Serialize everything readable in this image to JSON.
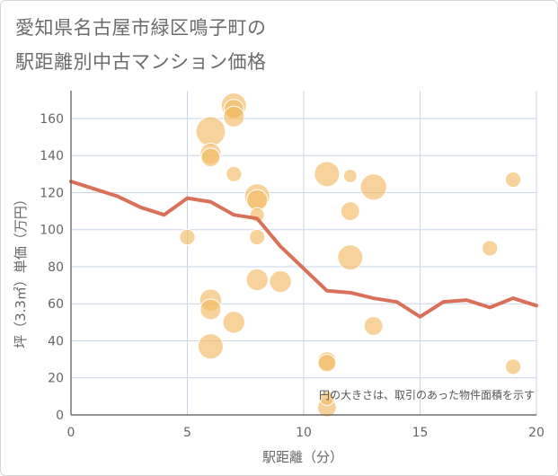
{
  "title_line1": "愛知県名古屋市緑区鳴子町の",
  "title_line2": "駅距離別中古マンション価格",
  "chart_data": {
    "type": "scatter",
    "xlabel": "駅距離（分）",
    "ylabel": "坪（3.3㎡）単価（万円）",
    "xlim": [
      0,
      20
    ],
    "ylim": [
      0,
      175
    ],
    "xticks": [
      0,
      5,
      10,
      15,
      20
    ],
    "yticks": [
      0,
      20,
      40,
      60,
      80,
      100,
      120,
      140,
      160
    ],
    "grid": true,
    "note": "円の大きさは、取引のあった物件面積を示す",
    "colors": {
      "bubble": "#f2bc66",
      "line": "#d9705a",
      "grid": "#c9d6e6"
    },
    "bubbles": [
      {
        "x": 5,
        "y": 96,
        "s": 0.3
      },
      {
        "x": 6,
        "y": 153,
        "s": 0.95
      },
      {
        "x": 6,
        "y": 141,
        "s": 0.55
      },
      {
        "x": 6,
        "y": 139,
        "s": 0.45
      },
      {
        "x": 6,
        "y": 62,
        "s": 0.6
      },
      {
        "x": 6,
        "y": 57,
        "s": 0.55
      },
      {
        "x": 6,
        "y": 37,
        "s": 0.75
      },
      {
        "x": 7,
        "y": 167,
        "s": 0.75
      },
      {
        "x": 7,
        "y": 165,
        "s": 0.5
      },
      {
        "x": 7,
        "y": 161,
        "s": 0.55
      },
      {
        "x": 7,
        "y": 130,
        "s": 0.3
      },
      {
        "x": 7,
        "y": 50,
        "s": 0.6
      },
      {
        "x": 8,
        "y": 118,
        "s": 0.75
      },
      {
        "x": 8,
        "y": 116,
        "s": 0.55
      },
      {
        "x": 8,
        "y": 108,
        "s": 0.25
      },
      {
        "x": 8,
        "y": 96,
        "s": 0.3
      },
      {
        "x": 8,
        "y": 73,
        "s": 0.6
      },
      {
        "x": 9,
        "y": 72,
        "s": 0.6
      },
      {
        "x": 11,
        "y": 130,
        "s": 0.75
      },
      {
        "x": 11,
        "y": 29,
        "s": 0.45
      },
      {
        "x": 11,
        "y": 28,
        "s": 0.4
      },
      {
        "x": 11,
        "y": 4,
        "s": 0.45
      },
      {
        "x": 11,
        "y": 9,
        "s": 0.25
      },
      {
        "x": 12,
        "y": 129,
        "s": 0.2
      },
      {
        "x": 12,
        "y": 110,
        "s": 0.45
      },
      {
        "x": 12,
        "y": 85,
        "s": 0.75
      },
      {
        "x": 13,
        "y": 123,
        "s": 0.8
      },
      {
        "x": 13,
        "y": 48,
        "s": 0.45
      },
      {
        "x": 18,
        "y": 90,
        "s": 0.3
      },
      {
        "x": 19,
        "y": 127,
        "s": 0.3
      },
      {
        "x": 19,
        "y": 26,
        "s": 0.3
      }
    ],
    "line": {
      "x": [
        0,
        1,
        2,
        3,
        4,
        5,
        6,
        7,
        8,
        9,
        10,
        11,
        12,
        13,
        14,
        15,
        16,
        17,
        18,
        19,
        20
      ],
      "y": [
        126,
        122,
        118,
        112,
        108,
        117,
        115,
        108,
        106,
        91,
        79,
        67,
        66,
        63,
        61,
        53,
        61,
        62,
        58,
        63,
        59
      ]
    }
  }
}
